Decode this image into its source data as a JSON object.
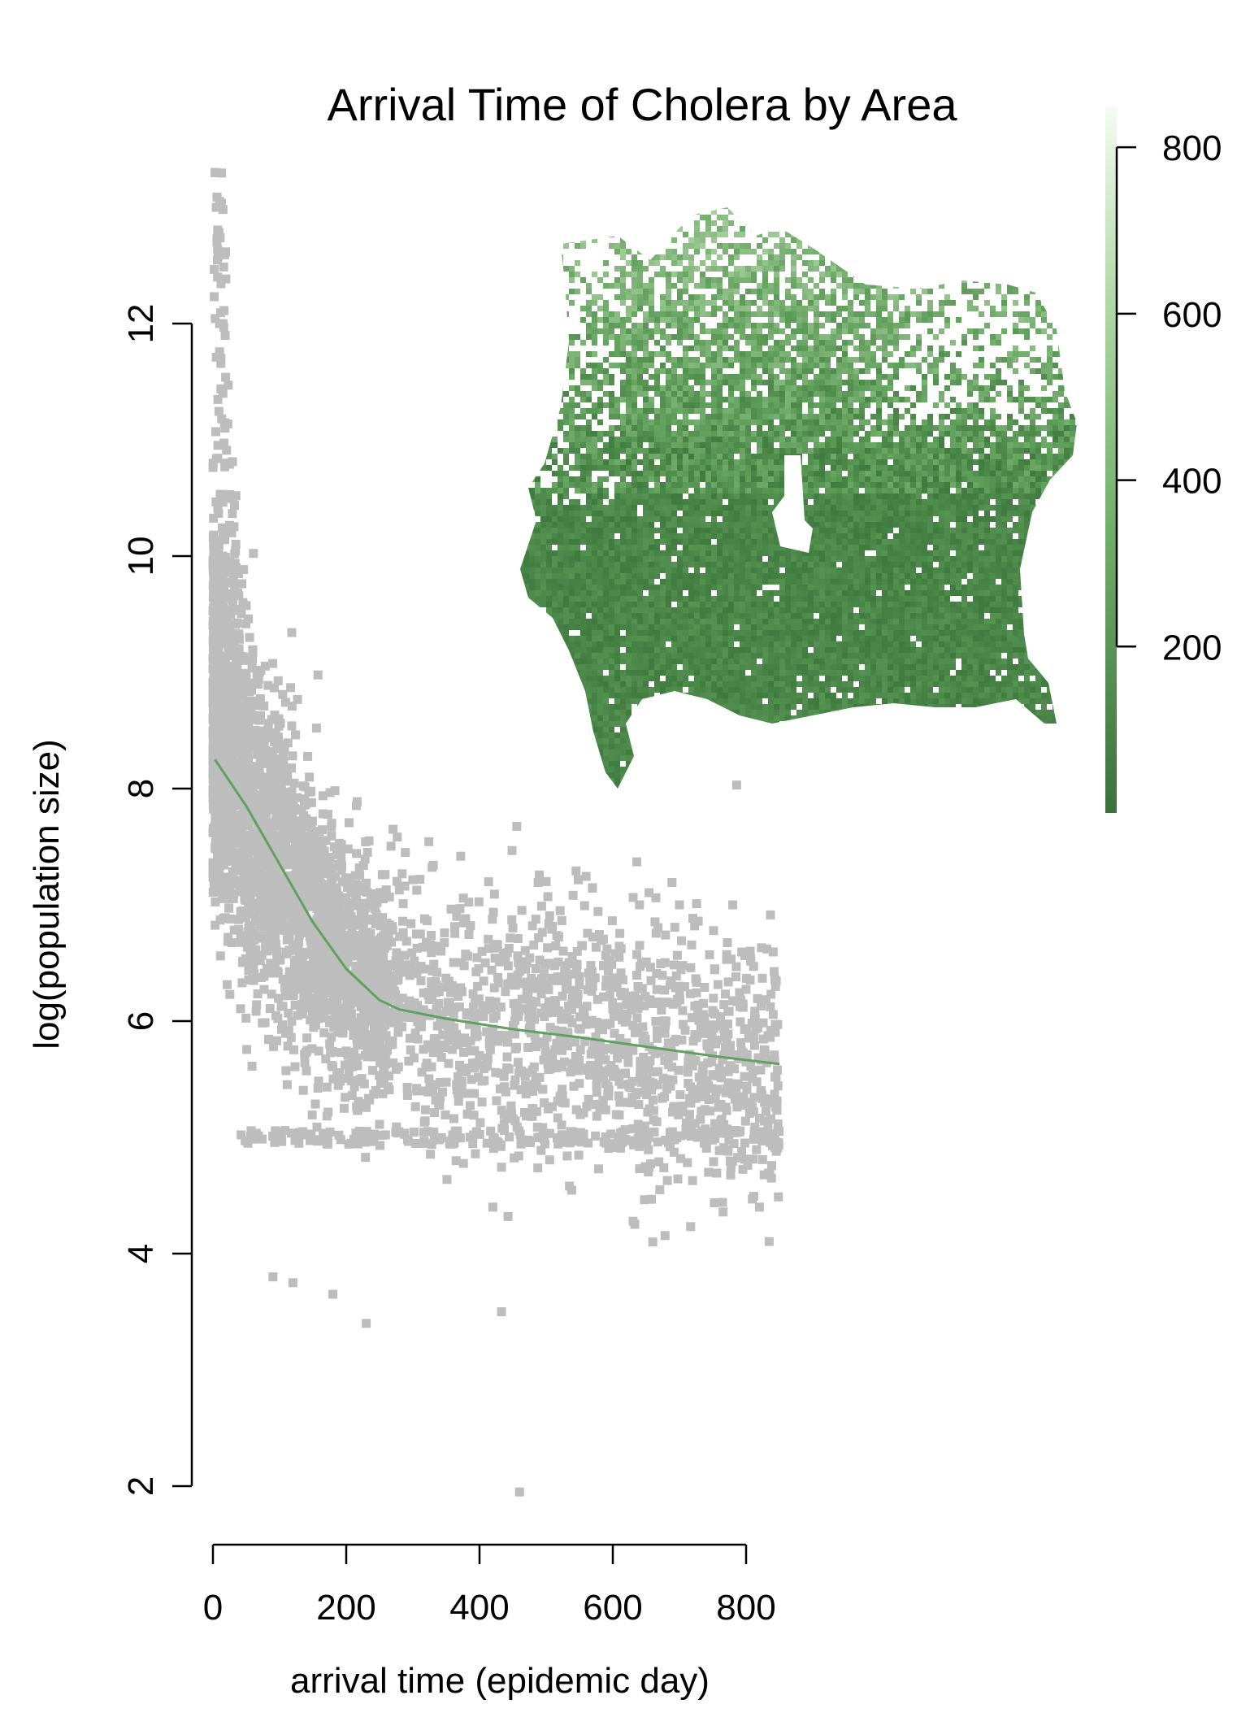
{
  "chart_data": {
    "type": "scatter",
    "title": "Arrival Time of Cholera by Area",
    "xlabel": "arrival time (epidemic day)",
    "ylabel": "log(population size)",
    "xlim": [
      -10,
      850
    ],
    "ylim": [
      2,
      13.5
    ],
    "xticks": [
      0,
      200,
      400,
      600,
      800
    ],
    "yticks": [
      2,
      4,
      6,
      8,
      10,
      12
    ],
    "grid": false,
    "legend": "none",
    "colors": {
      "points": "#bdbdbd",
      "smooth_line": "#5fa15f"
    },
    "series": [
      {
        "type": "scatter",
        "description_points": [
          [
            3,
            13.3
          ],
          [
            5,
            13.0
          ],
          [
            6,
            12.7
          ],
          [
            7,
            12.4
          ],
          [
            10,
            12.0
          ],
          [
            12,
            11.7
          ],
          [
            15,
            11.4
          ],
          [
            18,
            11.1
          ],
          [
            20,
            10.8
          ],
          [
            25,
            10.5
          ],
          [
            28,
            10.2
          ],
          [
            35,
            9.9
          ],
          [
            45,
            9.6
          ],
          [
            55,
            9.3
          ],
          [
            70,
            9.0
          ],
          [
            433,
            3.5
          ],
          [
            460,
            1.95
          ],
          [
            230,
            3.4
          ],
          [
            180,
            3.65
          ],
          [
            90,
            3.8
          ],
          [
            120,
            3.75
          ],
          [
            700,
            7.0
          ],
          [
            780,
            7.0
          ],
          [
            500,
            7.2
          ],
          [
            640,
            7.0
          ],
          [
            420,
            4.4
          ],
          [
            660,
            4.1
          ],
          [
            820,
            4.4
          ]
        ]
      },
      {
        "type": "smooth",
        "x": [
          3,
          50,
          100,
          150,
          200,
          250,
          280,
          350,
          450,
          550,
          650,
          750,
          850
        ],
        "y": [
          8.25,
          7.85,
          7.35,
          6.85,
          6.45,
          6.18,
          6.1,
          6.02,
          5.93,
          5.86,
          5.78,
          5.7,
          5.63
        ]
      }
    ]
  },
  "colorbar": {
    "ticks": [
      200,
      400,
      600,
      800
    ],
    "range": [
      0,
      850
    ],
    "low_color": "#3b723b",
    "high_color": "#f6fbf4"
  },
  "map": {
    "dark_color": "#3f7a3f",
    "mid_color": "#5f9e5a",
    "light_color": "#a9d3a0"
  }
}
